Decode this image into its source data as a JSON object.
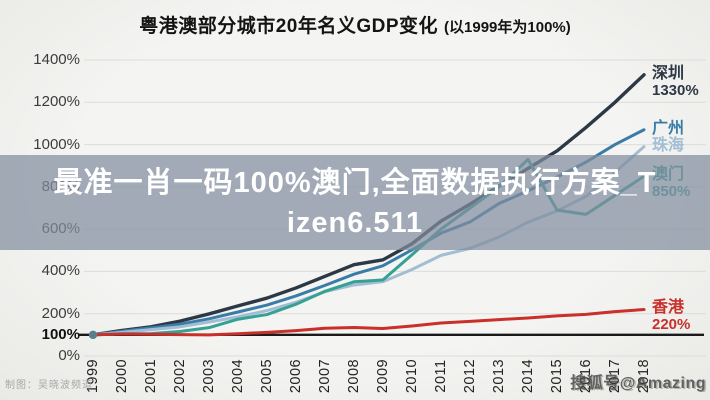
{
  "title": {
    "main": "粤港澳部分城市20年名义GDP变化",
    "note": "(以1999年为100%)"
  },
  "overlay": {
    "line1": "最准一肖一码100%澳门,全面数据执行方案_T",
    "line2": "izen6.511"
  },
  "credit": "制图：吴晓波频道",
  "watermark": "搜狐号@Amazing",
  "colors": {
    "shenzhen": "#2c3845",
    "guangzhou": "#3a7ca8",
    "zhuhai": "#a3bdd4",
    "macau": "#35a193",
    "hongkong": "#c9302a",
    "grid": "#dcdcda",
    "baseline": "#1a1a1a",
    "start_dot": "#57808f",
    "overlay_band": "#828ea0"
  },
  "chart_data": {
    "type": "line",
    "title": "粤港澳部分城市20年名义GDP变化 (以1999年为100%)",
    "x": [
      1999,
      2000,
      2001,
      2002,
      2003,
      2004,
      2005,
      2006,
      2007,
      2008,
      2009,
      2010,
      2011,
      2012,
      2013,
      2014,
      2015,
      2016,
      2017,
      2018
    ],
    "y_ticks": [
      {
        "v": 1400,
        "label": "1400%",
        "bold": false
      },
      {
        "v": 1200,
        "label": "1200%",
        "bold": false
      },
      {
        "v": 1000,
        "label": "1000%",
        "bold": false
      },
      {
        "v": 800,
        "label": "800%",
        "bold": false
      },
      {
        "v": 600,
        "label": "600%",
        "bold": false
      },
      {
        "v": 400,
        "label": "400%",
        "bold": false
      },
      {
        "v": 200,
        "label": "200%",
        "bold": false
      },
      {
        "v": 100,
        "label": "100%",
        "bold": true
      },
      {
        "v": 0,
        "label": "0%",
        "bold": false
      }
    ],
    "ylim": [
      0,
      1400
    ],
    "grid": true,
    "baseline_value": 100,
    "legend_position": "right-of-line-ends",
    "series": [
      {
        "name": "深圳",
        "end_label": "1330%",
        "color": "#2c3845",
        "width": 3.4,
        "values": [
          100,
          121,
          138,
          165,
          199,
          237,
          274,
          322,
          377,
          432,
          455,
          531,
          638,
          718,
          804,
          887,
          970,
          1081,
          1200,
          1330
        ]
      },
      {
        "name": "广州",
        "end_label": "",
        "color": "#3a7ca8",
        "width": 3,
        "values": [
          100,
          117,
          133,
          150,
          176,
          208,
          241,
          284,
          334,
          387,
          427,
          502,
          581,
          634,
          721,
          781,
          846,
          917,
          1000,
          1070
        ]
      },
      {
        "name": "珠海",
        "end_label": "",
        "color": "#a3bdd4",
        "width": 3,
        "values": [
          100,
          112,
          125,
          138,
          161,
          185,
          215,
          254,
          304,
          336,
          352,
          409,
          476,
          509,
          563,
          633,
          686,
          755,
          869,
          990
        ]
      },
      {
        "name": "澳门",
        "end_label": "850%",
        "color": "#35a193",
        "width": 3,
        "values": [
          100,
          105,
          106,
          116,
          134,
          174,
          196,
          245,
          306,
          351,
          360,
          479,
          600,
          700,
          800,
          930,
          690,
          670,
          760,
          850
        ]
      },
      {
        "name": "香港",
        "end_label": "220%",
        "color": "#c9302a",
        "width": 3,
        "values": [
          100,
          104,
          103,
          101,
          100,
          105,
          112,
          120,
          131,
          135,
          130,
          142,
          156,
          164,
          172,
          180,
          190,
          197,
          210,
          220
        ]
      }
    ]
  }
}
